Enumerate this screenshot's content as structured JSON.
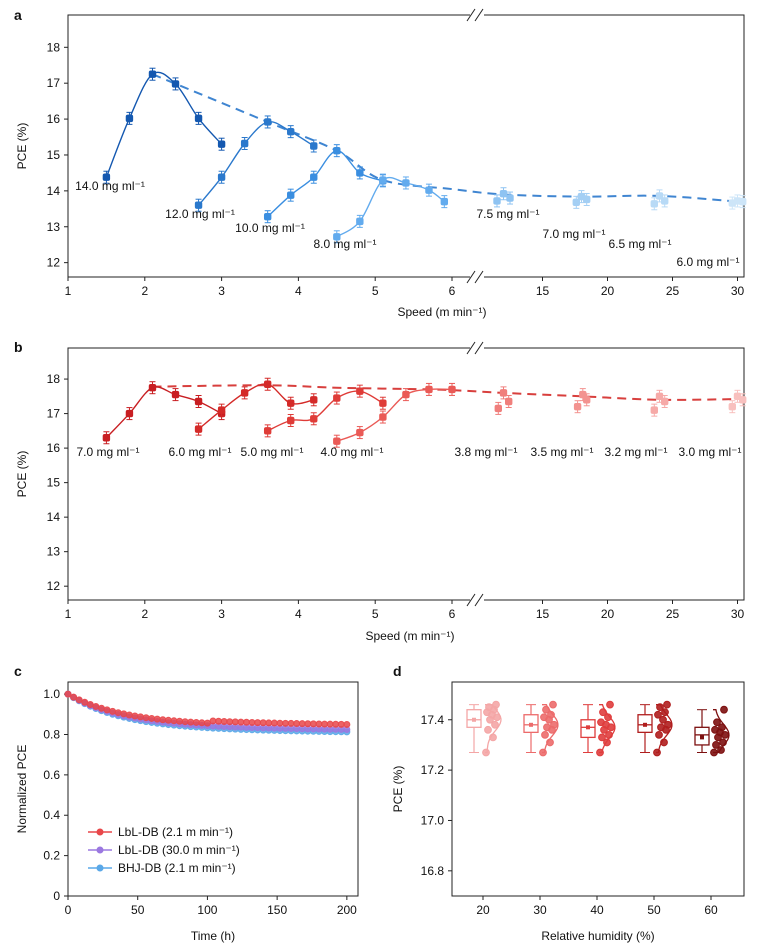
{
  "chart_data": [
    {
      "panel": "a",
      "type": "line",
      "xlabel": "Speed (m min⁻¹)",
      "ylabel": "PCE (%)",
      "ylim": [
        11.6,
        18.9
      ],
      "yticks": [
        12,
        13,
        14,
        15,
        16,
        17,
        18
      ],
      "x_axis_broken": true,
      "xticks_left": [
        1,
        2,
        3,
        4,
        5,
        6
      ],
      "xticks_right": [
        15,
        20,
        25,
        30
      ],
      "right_segment_range": [
        10.5,
        30.5
      ],
      "series": [
        {
          "name": "14.0 mg ml⁻¹",
          "color": "#1458b0",
          "x": [
            1.5,
            1.8,
            2.1,
            2.4,
            2.7,
            3.0
          ],
          "y": [
            14.38,
            16.02,
            17.25,
            16.98,
            16.02,
            15.3
          ]
        },
        {
          "name": "12.0 mg ml⁻¹",
          "color": "#2a78cc",
          "x": [
            2.7,
            3.0,
            3.3,
            3.6,
            3.9,
            4.2
          ],
          "y": [
            13.6,
            14.38,
            15.32,
            15.92,
            15.65,
            15.25
          ]
        },
        {
          "name": "10.0 mg ml⁻¹",
          "color": "#3a8ee0",
          "x": [
            3.6,
            3.9,
            4.2,
            4.5,
            4.8,
            5.1
          ],
          "y": [
            13.28,
            13.88,
            14.38,
            15.12,
            14.5,
            14.28
          ]
        },
        {
          "name": "8.0 mg ml⁻¹",
          "color": "#62abee",
          "x": [
            4.5,
            4.8,
            5.1,
            5.4,
            5.7,
            5.9
          ],
          "y": [
            12.72,
            13.15,
            14.3,
            14.22,
            14.02,
            13.7
          ]
        },
        {
          "name": "7.5 mg ml⁻¹",
          "color": "#8ec3f2",
          "x": [
            11.5,
            12.0,
            12.5
          ],
          "y": [
            13.72,
            13.92,
            13.8
          ]
        },
        {
          "name": "7.0 mg ml⁻¹",
          "color": "#a4cff4",
          "x": [
            17.6,
            18.0,
            18.4
          ],
          "y": [
            13.68,
            13.84,
            13.76
          ]
        },
        {
          "name": "6.5 mg ml⁻¹",
          "color": "#b8daf6",
          "x": [
            23.6,
            24.0,
            24.4
          ],
          "y": [
            13.64,
            13.86,
            13.72
          ]
        },
        {
          "name": "6.0 mg ml⁻¹",
          "color": "#cde5f8",
          "x": [
            29.6,
            30.0,
            30.4
          ],
          "y": [
            13.66,
            13.72,
            13.7
          ]
        }
      ],
      "trend": {
        "x": [
          2.1,
          3.6,
          4.5,
          5.1,
          6.0,
          12.0,
          18.0,
          24.0,
          30.0
        ],
        "y": [
          17.25,
          15.92,
          15.12,
          14.3,
          14.05,
          13.9,
          13.84,
          13.86,
          13.7
        ]
      }
    },
    {
      "panel": "b",
      "type": "line",
      "xlabel": "Speed (m min⁻¹)",
      "ylabel": "PCE (%)",
      "ylim": [
        11.6,
        18.9
      ],
      "yticks": [
        12,
        13,
        14,
        15,
        16,
        17,
        18
      ],
      "x_axis_broken": true,
      "xticks_left": [
        1,
        2,
        3,
        4,
        5,
        6
      ],
      "xticks_right": [
        15,
        20,
        25,
        30
      ],
      "right_segment_range": [
        10.5,
        30.5
      ],
      "series": [
        {
          "name": "7.0 mg ml⁻¹",
          "color": "#c81e22",
          "x": [
            1.5,
            1.8,
            2.1,
            2.4,
            2.7,
            3.0
          ],
          "y": [
            16.3,
            17.0,
            17.75,
            17.55,
            17.35,
            17.0
          ]
        },
        {
          "name": "6.0 mg ml⁻¹",
          "color": "#d42a28",
          "x": [
            2.7,
            3.0,
            3.3,
            3.6,
            3.9,
            4.2
          ],
          "y": [
            16.55,
            17.1,
            17.6,
            17.85,
            17.3,
            17.4
          ]
        },
        {
          "name": "5.0 mg ml⁻¹",
          "color": "#df3c38",
          "x": [
            3.6,
            3.9,
            4.2,
            4.5,
            4.8,
            5.1
          ],
          "y": [
            16.5,
            16.8,
            16.85,
            17.45,
            17.65,
            17.3
          ]
        },
        {
          "name": "4.0 mg ml⁻¹",
          "color": "#ea5a56",
          "x": [
            4.5,
            4.8,
            5.1,
            5.4,
            5.7,
            6.0
          ],
          "y": [
            16.2,
            16.45,
            16.9,
            17.55,
            17.7,
            17.7
          ]
        },
        {
          "name": "3.8 mg ml⁻¹",
          "color": "#f07f7c",
          "x": [
            11.6,
            12.0,
            12.4
          ],
          "y": [
            17.15,
            17.6,
            17.35
          ]
        },
        {
          "name": "3.5 mg ml⁻¹",
          "color": "#f39390",
          "x": [
            17.7,
            18.1,
            18.4
          ],
          "y": [
            17.2,
            17.55,
            17.4
          ]
        },
        {
          "name": "3.2 mg ml⁻¹",
          "color": "#f6aaa8",
          "x": [
            23.6,
            24.0,
            24.4
          ],
          "y": [
            17.1,
            17.5,
            17.35
          ]
        },
        {
          "name": "3.0 mg ml⁻¹",
          "color": "#f8c0be",
          "x": [
            29.6,
            30.0,
            30.4
          ],
          "y": [
            17.2,
            17.5,
            17.4
          ]
        }
      ],
      "trend": {
        "x": [
          2.1,
          3.6,
          4.5,
          5.7,
          6.0,
          12.0,
          18.0,
          24.0,
          30.0
        ],
        "y": [
          17.78,
          17.82,
          17.75,
          17.7,
          17.68,
          17.6,
          17.5,
          17.4,
          17.42
        ]
      }
    },
    {
      "panel": "c",
      "type": "line",
      "xlabel": "Time (h)",
      "ylabel": "Normalized PCE",
      "xlim": [
        0,
        208
      ],
      "ylim": [
        0,
        1.06
      ],
      "xticks": [
        0,
        50,
        100,
        150,
        200
      ],
      "yticks": [
        0,
        0.2,
        0.4,
        0.6,
        0.8,
        1.0
      ],
      "legend_position": "bottom-left",
      "series": [
        {
          "name": "LbL-DB (2.1 m min⁻¹)",
          "color": "#e8474a",
          "decay": [
            1.0,
            0.145,
            0.0,
            0.045
          ]
        },
        {
          "name": "LbL-DB (30.0 m min⁻¹)",
          "color": "#9b78e0",
          "decay": [
            1.0,
            0.16,
            0.0,
            0.04
          ]
        },
        {
          "name": "BHJ-DB (2.1 m min⁻¹)",
          "color": "#5aa8e8",
          "decay": [
            1.0,
            0.17,
            0.0,
            0.045
          ]
        }
      ]
    },
    {
      "panel": "d",
      "type": "box",
      "xlabel": "Relative humidity (%)",
      "ylabel": "PCE (%)",
      "ylim": [
        16.7,
        17.55
      ],
      "yticks": [
        16.8,
        17.0,
        17.2,
        17.4
      ],
      "categories": [
        "20",
        "30",
        "40",
        "50",
        "60"
      ],
      "colors": [
        "#f4a6a6",
        "#ec6b6b",
        "#df3d3d",
        "#b01e1e",
        "#7d1010"
      ],
      "points": [
        [
          17.27,
          17.33,
          17.36,
          17.38,
          17.4,
          17.41,
          17.42,
          17.43,
          17.44,
          17.45,
          17.46
        ],
        [
          17.27,
          17.31,
          17.34,
          17.36,
          17.37,
          17.38,
          17.4,
          17.41,
          17.42,
          17.44,
          17.46
        ],
        [
          17.27,
          17.31,
          17.33,
          17.34,
          17.36,
          17.37,
          17.38,
          17.39,
          17.41,
          17.43,
          17.46
        ],
        [
          17.27,
          17.31,
          17.34,
          17.36,
          17.37,
          17.38,
          17.4,
          17.42,
          17.43,
          17.45,
          17.46
        ],
        [
          17.27,
          17.28,
          17.3,
          17.31,
          17.33,
          17.34,
          17.35,
          17.36,
          17.37,
          17.39,
          17.44
        ]
      ],
      "box_stats": [
        {
          "whisker_low": 17.27,
          "q1": 17.37,
          "median": 17.4,
          "mean": 17.4,
          "q3": 17.44,
          "whisker_high": 17.46
        },
        {
          "whisker_low": 17.27,
          "q1": 17.35,
          "median": 17.38,
          "mean": 17.38,
          "q3": 17.42,
          "whisker_high": 17.46
        },
        {
          "whisker_low": 17.27,
          "q1": 17.33,
          "median": 17.37,
          "mean": 17.37,
          "q3": 17.4,
          "whisker_high": 17.46
        },
        {
          "whisker_low": 17.27,
          "q1": 17.35,
          "median": 17.38,
          "mean": 17.38,
          "q3": 17.42,
          "whisker_high": 17.46
        },
        {
          "whisker_low": 17.27,
          "q1": 17.3,
          "median": 17.34,
          "mean": 17.33,
          "q3": 17.37,
          "whisker_high": 17.44
        }
      ]
    }
  ]
}
